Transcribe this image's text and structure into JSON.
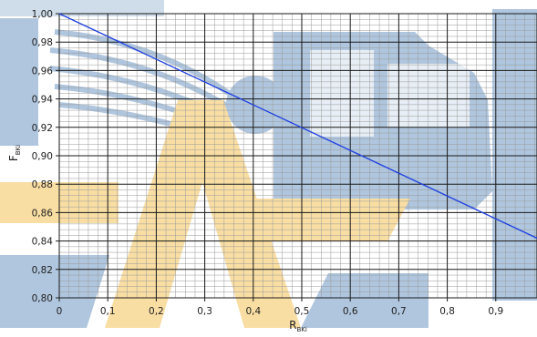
{
  "chart_data": {
    "type": "line",
    "title": "",
    "xlabel": {
      "main": "R",
      "sub": "BKi"
    },
    "ylabel": {
      "main": "F",
      "sub": "BKi"
    },
    "xlim": [
      0,
      0.985
    ],
    "ylim": [
      0.8,
      1.0
    ],
    "x_ticks": [
      {
        "value": 0,
        "label": "0"
      },
      {
        "value": 0.1,
        "label": "0,1"
      },
      {
        "value": 0.2,
        "label": "0,2"
      },
      {
        "value": 0.3,
        "label": "0,3"
      },
      {
        "value": 0.4,
        "label": "0,4"
      },
      {
        "value": 0.5,
        "label": "0,5"
      },
      {
        "value": 0.6,
        "label": "0,6"
      },
      {
        "value": 0.7,
        "label": "0,7"
      },
      {
        "value": 0.8,
        "label": "0,8"
      },
      {
        "value": 0.9,
        "label": "0,9"
      }
    ],
    "y_ticks": [
      {
        "value": 0.8,
        "label": "0,80"
      },
      {
        "value": 0.82,
        "label": "0,82"
      },
      {
        "value": 0.84,
        "label": "0,84"
      },
      {
        "value": 0.86,
        "label": "0,86"
      },
      {
        "value": 0.88,
        "label": "0,88"
      },
      {
        "value": 0.9,
        "label": "0,90"
      },
      {
        "value": 0.92,
        "label": "0,92"
      },
      {
        "value": 0.94,
        "label": "0,94"
      },
      {
        "value": 0.96,
        "label": "0,96"
      },
      {
        "value": 0.98,
        "label": "0,98"
      },
      {
        "value": 1.0,
        "label": "1,00"
      }
    ],
    "minor_x_step": 0.02,
    "minor_y_step": 0.004,
    "grid": true,
    "series": [
      {
        "color": "#1f3fe0",
        "x": [
          0,
          0.985
        ],
        "y": [
          1.0,
          0.842
        ]
      }
    ],
    "colors": {
      "major_grid": "#1a1a1a",
      "minor_grid": "#9a9a9a",
      "watermark_blue": "#4d7fb5",
      "watermark_yellow": "#f2b632"
    }
  }
}
